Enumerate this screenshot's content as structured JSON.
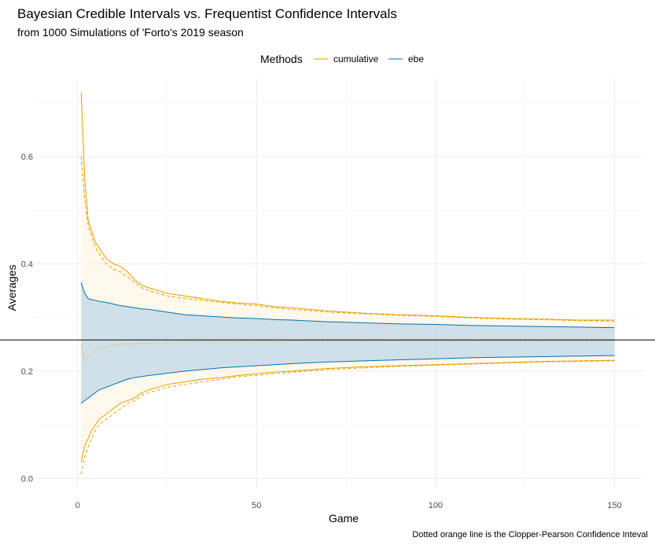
{
  "chart_data": {
    "type": "line",
    "title": "Bayesian Credible Intervals vs. Frequentist Confidence Intervals",
    "subtitle": "from 1000 Simulations of 'Forto's 2019 season",
    "xlabel": "Game",
    "ylabel": "Averages",
    "caption": "Dotted orange line is the Clopper-Pearson Confidence Inteval",
    "legend": {
      "title": "Methods",
      "position": "top",
      "entries": [
        {
          "label": "cumulative",
          "color": "#E69F00"
        },
        {
          "label": "ebe",
          "color": "#0072B2"
        }
      ]
    },
    "xlim": [
      -12,
      158
    ],
    "ylim": [
      -0.02,
      0.745
    ],
    "x_ticks": [
      {
        "value": 0,
        "label": "0"
      },
      {
        "value": 50,
        "label": "50"
      },
      {
        "value": 100,
        "label": "100"
      },
      {
        "value": 150,
        "label": "150"
      }
    ],
    "y_ticks": [
      {
        "value": 0.0,
        "label": "0.0"
      },
      {
        "value": 0.2,
        "label": "0.2"
      },
      {
        "value": 0.4,
        "label": "0.4"
      },
      {
        "value": 0.6,
        "label": "0.6"
      }
    ],
    "grid": true,
    "hline": 0.258,
    "x": [
      1,
      2,
      3,
      4,
      5,
      6,
      8,
      10,
      12,
      14,
      16,
      18,
      20,
      25,
      30,
      35,
      40,
      45,
      50,
      55,
      60,
      70,
      80,
      90,
      100,
      110,
      120,
      130,
      140,
      150
    ],
    "series": [
      {
        "name": "cumulative",
        "role": "upper",
        "color": "#E69F00",
        "dash": "solid",
        "values": [
          0.72,
          0.56,
          0.48,
          0.46,
          0.44,
          0.43,
          0.41,
          0.4,
          0.395,
          0.385,
          0.37,
          0.36,
          0.355,
          0.345,
          0.34,
          0.335,
          0.33,
          0.327,
          0.325,
          0.32,
          0.318,
          0.312,
          0.308,
          0.305,
          0.303,
          0.3,
          0.298,
          0.297,
          0.295,
          0.295
        ]
      },
      {
        "name": "cumulative",
        "role": "lower",
        "color": "#E69F00",
        "dash": "solid",
        "values": [
          0.03,
          0.06,
          0.075,
          0.09,
          0.1,
          0.11,
          0.12,
          0.13,
          0.14,
          0.145,
          0.15,
          0.16,
          0.165,
          0.175,
          0.18,
          0.185,
          0.188,
          0.192,
          0.195,
          0.198,
          0.2,
          0.205,
          0.208,
          0.21,
          0.212,
          0.214,
          0.216,
          0.218,
          0.219,
          0.22
        ]
      },
      {
        "name": "Clopper-Pearson",
        "role": "upper",
        "color": "#E69F00",
        "dash": "dashed",
        "values": [
          0.6,
          0.52,
          0.47,
          0.45,
          0.43,
          0.42,
          0.4,
          0.39,
          0.385,
          0.375,
          0.365,
          0.355,
          0.35,
          0.34,
          0.335,
          0.332,
          0.328,
          0.325,
          0.322,
          0.318,
          0.315,
          0.31,
          0.307,
          0.304,
          0.302,
          0.299,
          0.297,
          0.296,
          0.294,
          0.293
        ]
      },
      {
        "name": "Clopper-Pearson",
        "role": "lower",
        "color": "#E69F00",
        "dash": "dashed",
        "values": [
          0.008,
          0.04,
          0.06,
          0.075,
          0.09,
          0.1,
          0.11,
          0.12,
          0.13,
          0.14,
          0.145,
          0.155,
          0.16,
          0.17,
          0.175,
          0.18,
          0.185,
          0.19,
          0.192,
          0.195,
          0.198,
          0.203,
          0.206,
          0.209,
          0.211,
          0.213,
          0.215,
          0.217,
          0.218,
          0.219
        ]
      },
      {
        "name": "ebe",
        "role": "upper",
        "color": "#0072B2",
        "dash": "solid",
        "values": [
          0.365,
          0.345,
          0.335,
          0.333,
          0.332,
          0.33,
          0.328,
          0.325,
          0.322,
          0.32,
          0.318,
          0.316,
          0.315,
          0.31,
          0.305,
          0.303,
          0.301,
          0.299,
          0.298,
          0.296,
          0.295,
          0.292,
          0.29,
          0.288,
          0.287,
          0.285,
          0.284,
          0.283,
          0.282,
          0.281
        ]
      },
      {
        "name": "ebe",
        "role": "lower",
        "color": "#0072B2",
        "dash": "solid",
        "values": [
          0.14,
          0.145,
          0.15,
          0.155,
          0.16,
          0.165,
          0.17,
          0.175,
          0.18,
          0.185,
          0.188,
          0.19,
          0.192,
          0.196,
          0.2,
          0.203,
          0.206,
          0.208,
          0.21,
          0.212,
          0.214,
          0.217,
          0.219,
          0.221,
          0.223,
          0.225,
          0.226,
          0.227,
          0.228,
          0.229
        ]
      },
      {
        "name": "Clopper-Pearson estimate",
        "role": "estimate",
        "color": "#E69F00",
        "dash": "dotted",
        "values": [
          0.25,
          0.22,
          0.225,
          0.235,
          0.24,
          0.242,
          0.245,
          0.248,
          0.25,
          0.25,
          0.251,
          0.252,
          0.252,
          0.253,
          0.254,
          0.254,
          0.255,
          0.255,
          0.255,
          0.255,
          0.256,
          0.256,
          0.256,
          0.256,
          0.256,
          0.256,
          0.256,
          0.256,
          0.256,
          0.256
        ]
      }
    ],
    "bands": [
      {
        "name": "cumulative",
        "fill": "#FFF3E0",
        "opacity": 0.6,
        "upper_series": 0,
        "lower_series": 1
      },
      {
        "name": "ebe",
        "fill": "#A9CCE6",
        "opacity": 0.55,
        "upper_series": 4,
        "lower_series": 5
      }
    ]
  }
}
